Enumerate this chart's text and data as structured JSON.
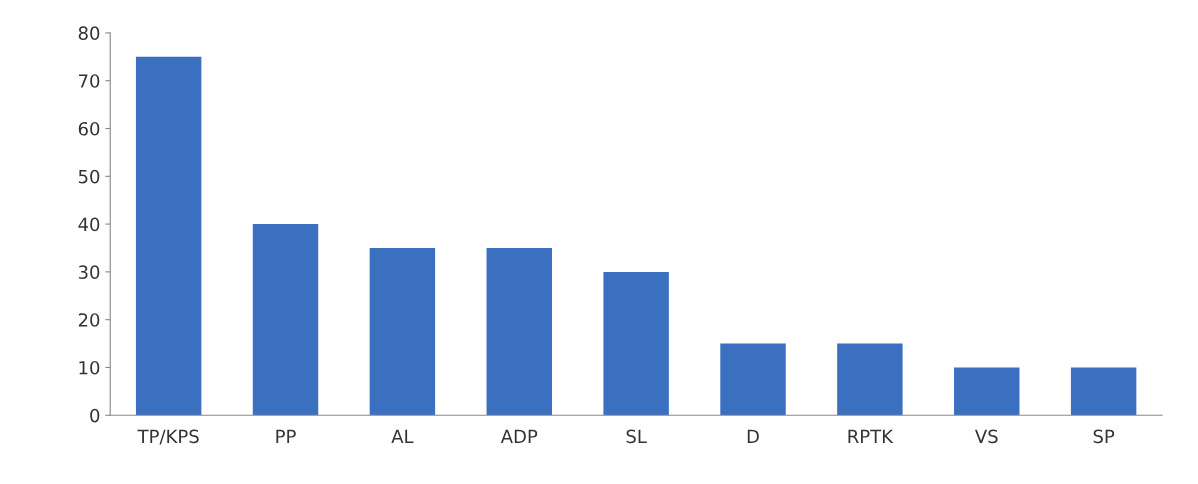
{
  "chart_data": {
    "type": "bar",
    "categories": [
      "TP/KPS",
      "PP",
      "AL",
      "ADP",
      "SL",
      "D",
      "RPTK",
      "VS",
      "SP"
    ],
    "values": [
      75,
      40,
      35,
      35,
      30,
      15,
      15,
      10,
      10
    ],
    "color": "#3b70c0",
    "ylim": [
      0,
      80
    ],
    "yticks": [
      0,
      10,
      20,
      30,
      40,
      50,
      60,
      70,
      80
    ],
    "grid": false,
    "legend": false
  }
}
